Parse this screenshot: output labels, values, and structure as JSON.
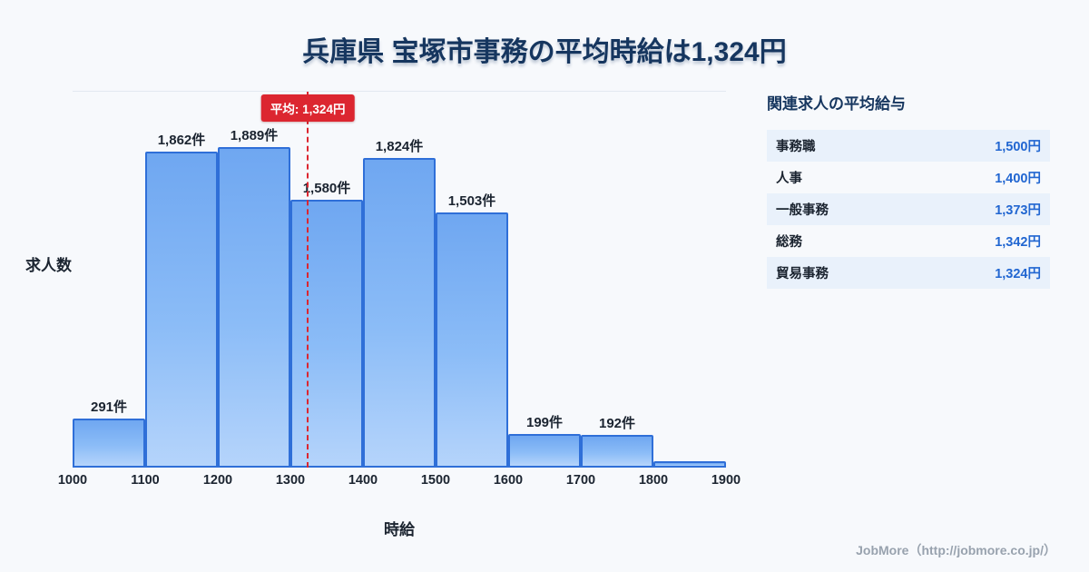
{
  "page": {
    "title": "兵庫県 宝塚市事務の平均時給は1,324円",
    "footer": "JobMore（http://jobmore.co.jp/）"
  },
  "chart_data": {
    "type": "bar",
    "title": "兵庫県 宝塚市事務の平均時給は1,324円",
    "xlabel": "時給",
    "ylabel": "求人数",
    "x_ticks": [
      1000,
      1100,
      1200,
      1300,
      1400,
      1500,
      1600,
      1700,
      1800,
      1900
    ],
    "ylim": [
      0,
      1900
    ],
    "grid": false,
    "legend": "none",
    "bins": [
      {
        "range": [
          1000,
          1100
        ],
        "count": 291,
        "label": "291件"
      },
      {
        "range": [
          1100,
          1200
        ],
        "count": 1862,
        "label": "1,862件"
      },
      {
        "range": [
          1200,
          1300
        ],
        "count": 1889,
        "label": "1,889件"
      },
      {
        "range": [
          1300,
          1400
        ],
        "count": 1580,
        "label": "1,580件"
      },
      {
        "range": [
          1400,
          1500
        ],
        "count": 1824,
        "label": "1,824件"
      },
      {
        "range": [
          1500,
          1600
        ],
        "count": 1503,
        "label": "1,503件"
      },
      {
        "range": [
          1600,
          1700
        ],
        "count": 199,
        "label": "199件"
      },
      {
        "range": [
          1700,
          1800
        ],
        "count": 192,
        "label": "192件"
      },
      {
        "range": [
          1800,
          1900
        ],
        "count": 40,
        "label": ""
      }
    ],
    "average": {
      "value": 1324,
      "label": "平均: 1,324円"
    },
    "colors": {
      "bar_top": "#6fa7f1",
      "bar_bottom": "#b5d4fb",
      "bar_border": "#2f6fd8",
      "average": "#dc2630",
      "value_text": "#2166d1",
      "title": "#16365f"
    }
  },
  "related": {
    "heading": "関連求人の平均給与",
    "rows": [
      {
        "name": "事務職",
        "value": "1,500円"
      },
      {
        "name": "人事",
        "value": "1,400円"
      },
      {
        "name": "一般事務",
        "value": "1,373円"
      },
      {
        "name": "総務",
        "value": "1,342円"
      },
      {
        "name": "貿易事務",
        "value": "1,324円"
      }
    ]
  }
}
